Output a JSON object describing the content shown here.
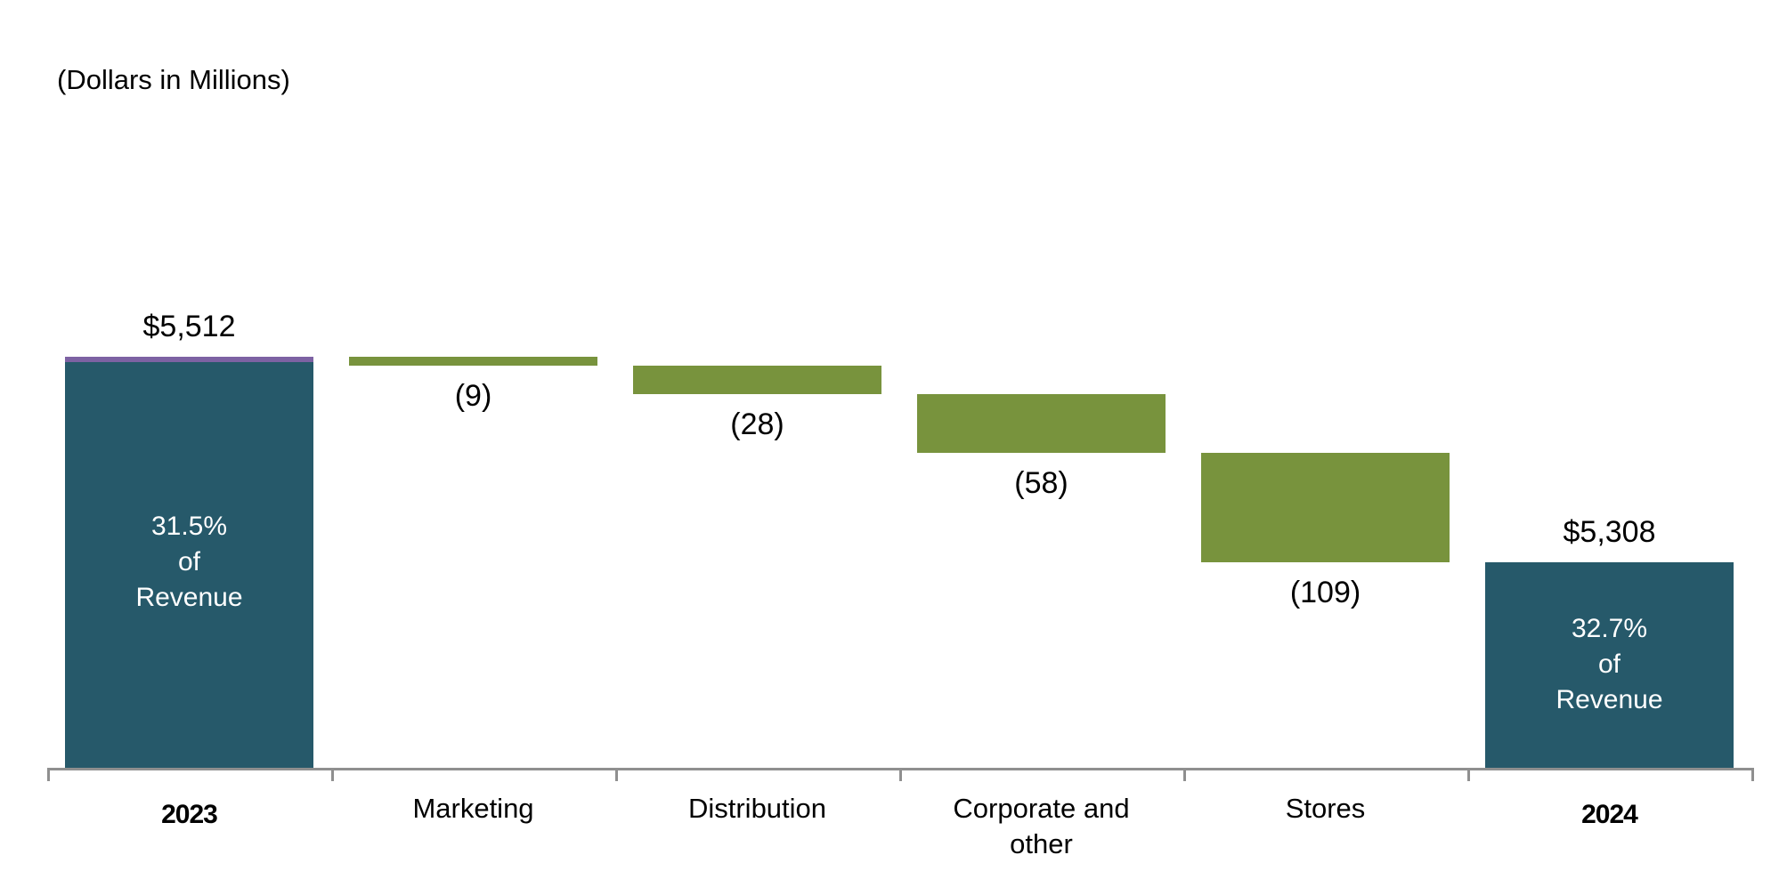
{
  "chart_data": {
    "type": "bar",
    "subtype": "waterfall",
    "title": "(Dollars in Millions)",
    "categories": [
      "2023",
      "Marketing",
      "Distribution",
      "Corporate and other",
      "Stores",
      "2024"
    ],
    "ylim": [
      5104,
      5865
    ],
    "grid": false,
    "legend": "none",
    "colors": {
      "total_bar": "#26596A",
      "delta_bar": "#78933D",
      "cap": "#7D62A3",
      "axis": "#8F8F8F",
      "inside_text": "#FFFFFF",
      "label_text": "#000000"
    },
    "bars": [
      {
        "name": "2023",
        "label": "2023",
        "label_bold": true,
        "type": "total",
        "value": 5512,
        "value_label": "$5,512",
        "inside_lines": [
          "31.5%",
          "of",
          "Revenue"
        ],
        "cap": true
      },
      {
        "name": "marketing",
        "label": "Marketing",
        "label_bold": false,
        "type": "delta",
        "value": -9,
        "value_label": "(9)"
      },
      {
        "name": "distribution",
        "label": "Distribution",
        "label_bold": false,
        "type": "delta",
        "value": -28,
        "value_label": "(28)"
      },
      {
        "name": "corporate-and-other",
        "label": "Corporate and\nother",
        "label_bold": false,
        "type": "delta",
        "value": -58,
        "value_label": "(58)"
      },
      {
        "name": "stores",
        "label": "Stores",
        "label_bold": false,
        "type": "delta",
        "value": -109,
        "value_label": "(109)"
      },
      {
        "name": "2024",
        "label": "2024",
        "label_bold": true,
        "type": "total",
        "value": 5308,
        "value_label": "$5,308",
        "inside_lines": [
          "32.7%",
          "of",
          "Revenue"
        ]
      }
    ]
  }
}
